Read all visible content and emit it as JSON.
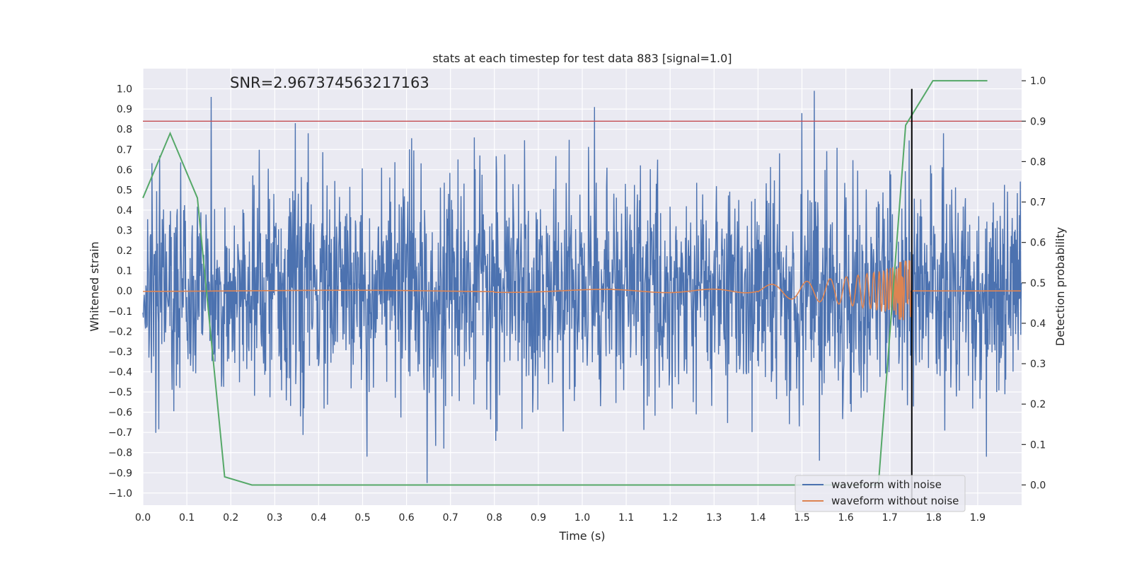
{
  "chart_data": {
    "type": "line",
    "title": "stats at each timestep for test data 883 [signal=1.0]",
    "annotation": "SNR=2.967374563217163",
    "xlabel": "Time (s)",
    "ylabel_left": "Whitened strain",
    "ylabel_right": "Detection probability",
    "xlim": [
      0.0,
      2.0
    ],
    "ylim_left": [
      -1.06,
      1.1
    ],
    "ylim_right": [
      -0.05,
      1.03
    ],
    "x_ticks": [
      "0.0",
      "0.1",
      "0.2",
      "0.3",
      "0.4",
      "0.5",
      "0.6",
      "0.7",
      "0.8",
      "0.9",
      "1.0",
      "1.1",
      "1.2",
      "1.3",
      "1.4",
      "1.5",
      "1.6",
      "1.7",
      "1.8",
      "1.9"
    ],
    "y_ticks_left": [
      "1.0",
      "0.9",
      "0.8",
      "0.7",
      "0.6",
      "0.5",
      "0.4",
      "0.3",
      "0.2",
      "0.1",
      "0.0",
      "−0.1",
      "−0.2",
      "−0.3",
      "−0.4",
      "−0.5",
      "−0.6",
      "−0.7",
      "−0.8",
      "−0.9",
      "−1.0"
    ],
    "y_ticks_right": [
      "1.0",
      "0.9",
      "0.8",
      "0.7",
      "0.6",
      "0.5",
      "0.4",
      "0.3",
      "0.2",
      "0.1",
      "0.0"
    ],
    "threshold": {
      "value_right": 0.9,
      "color": "#c44e52"
    },
    "detection_time": {
      "x": 1.75,
      "color": "#000000"
    },
    "legend": {
      "placement": "lower-right",
      "entries": [
        "waveform with noise",
        "waveform without noise"
      ]
    },
    "grid": true,
    "colors": {
      "noise": "#4c72b0",
      "clean": "#dd8452",
      "probability": "#55a868",
      "background": "#eaeaf2"
    },
    "series": [
      {
        "name": "waveform with noise",
        "axis": "left",
        "x_range": [
          0.0,
          2.0
        ],
        "sample_count": 2048,
        "peaks": [
          [
            0.155,
            0.96
          ],
          [
            0.347,
            0.83
          ],
          [
            0.51,
            -0.82
          ],
          [
            0.647,
            -0.95
          ],
          [
            1.028,
            0.91
          ],
          [
            1.5,
            0.88
          ],
          [
            1.528,
            0.99
          ],
          [
            1.54,
            -0.84
          ],
          [
            1.92,
            -0.82
          ]
        ],
        "std": 0.3
      },
      {
        "name": "waveform without noise",
        "axis": "left",
        "x_range": [
          0.0,
          1.75
        ],
        "peak_time": 1.72,
        "peak_amplitude": 0.14
      },
      {
        "name": "",
        "axis": "right",
        "x": [
          0.0,
          0.062,
          0.124,
          0.186,
          0.248,
          0.31,
          0.372,
          0.434,
          0.496,
          0.558,
          0.62,
          0.682,
          0.744,
          0.806,
          0.868,
          0.93,
          0.992,
          1.054,
          1.116,
          1.178,
          1.24,
          1.302,
          1.364,
          1.426,
          1.488,
          1.55,
          1.612,
          1.674,
          1.736,
          1.798,
          1.86,
          1.922
        ],
        "values": [
          0.71,
          0.87,
          0.71,
          0.02,
          0.0,
          0.0,
          0.0,
          0.0,
          0.0,
          0.0,
          0.0,
          0.0,
          0.0,
          0.0,
          0.0,
          0.0,
          0.0,
          0.0,
          0.0,
          0.0,
          0.0,
          0.0,
          0.0,
          0.0,
          0.0,
          0.0,
          0.0,
          0.0,
          0.89,
          1.0,
          1.0,
          1.0
        ]
      }
    ]
  }
}
